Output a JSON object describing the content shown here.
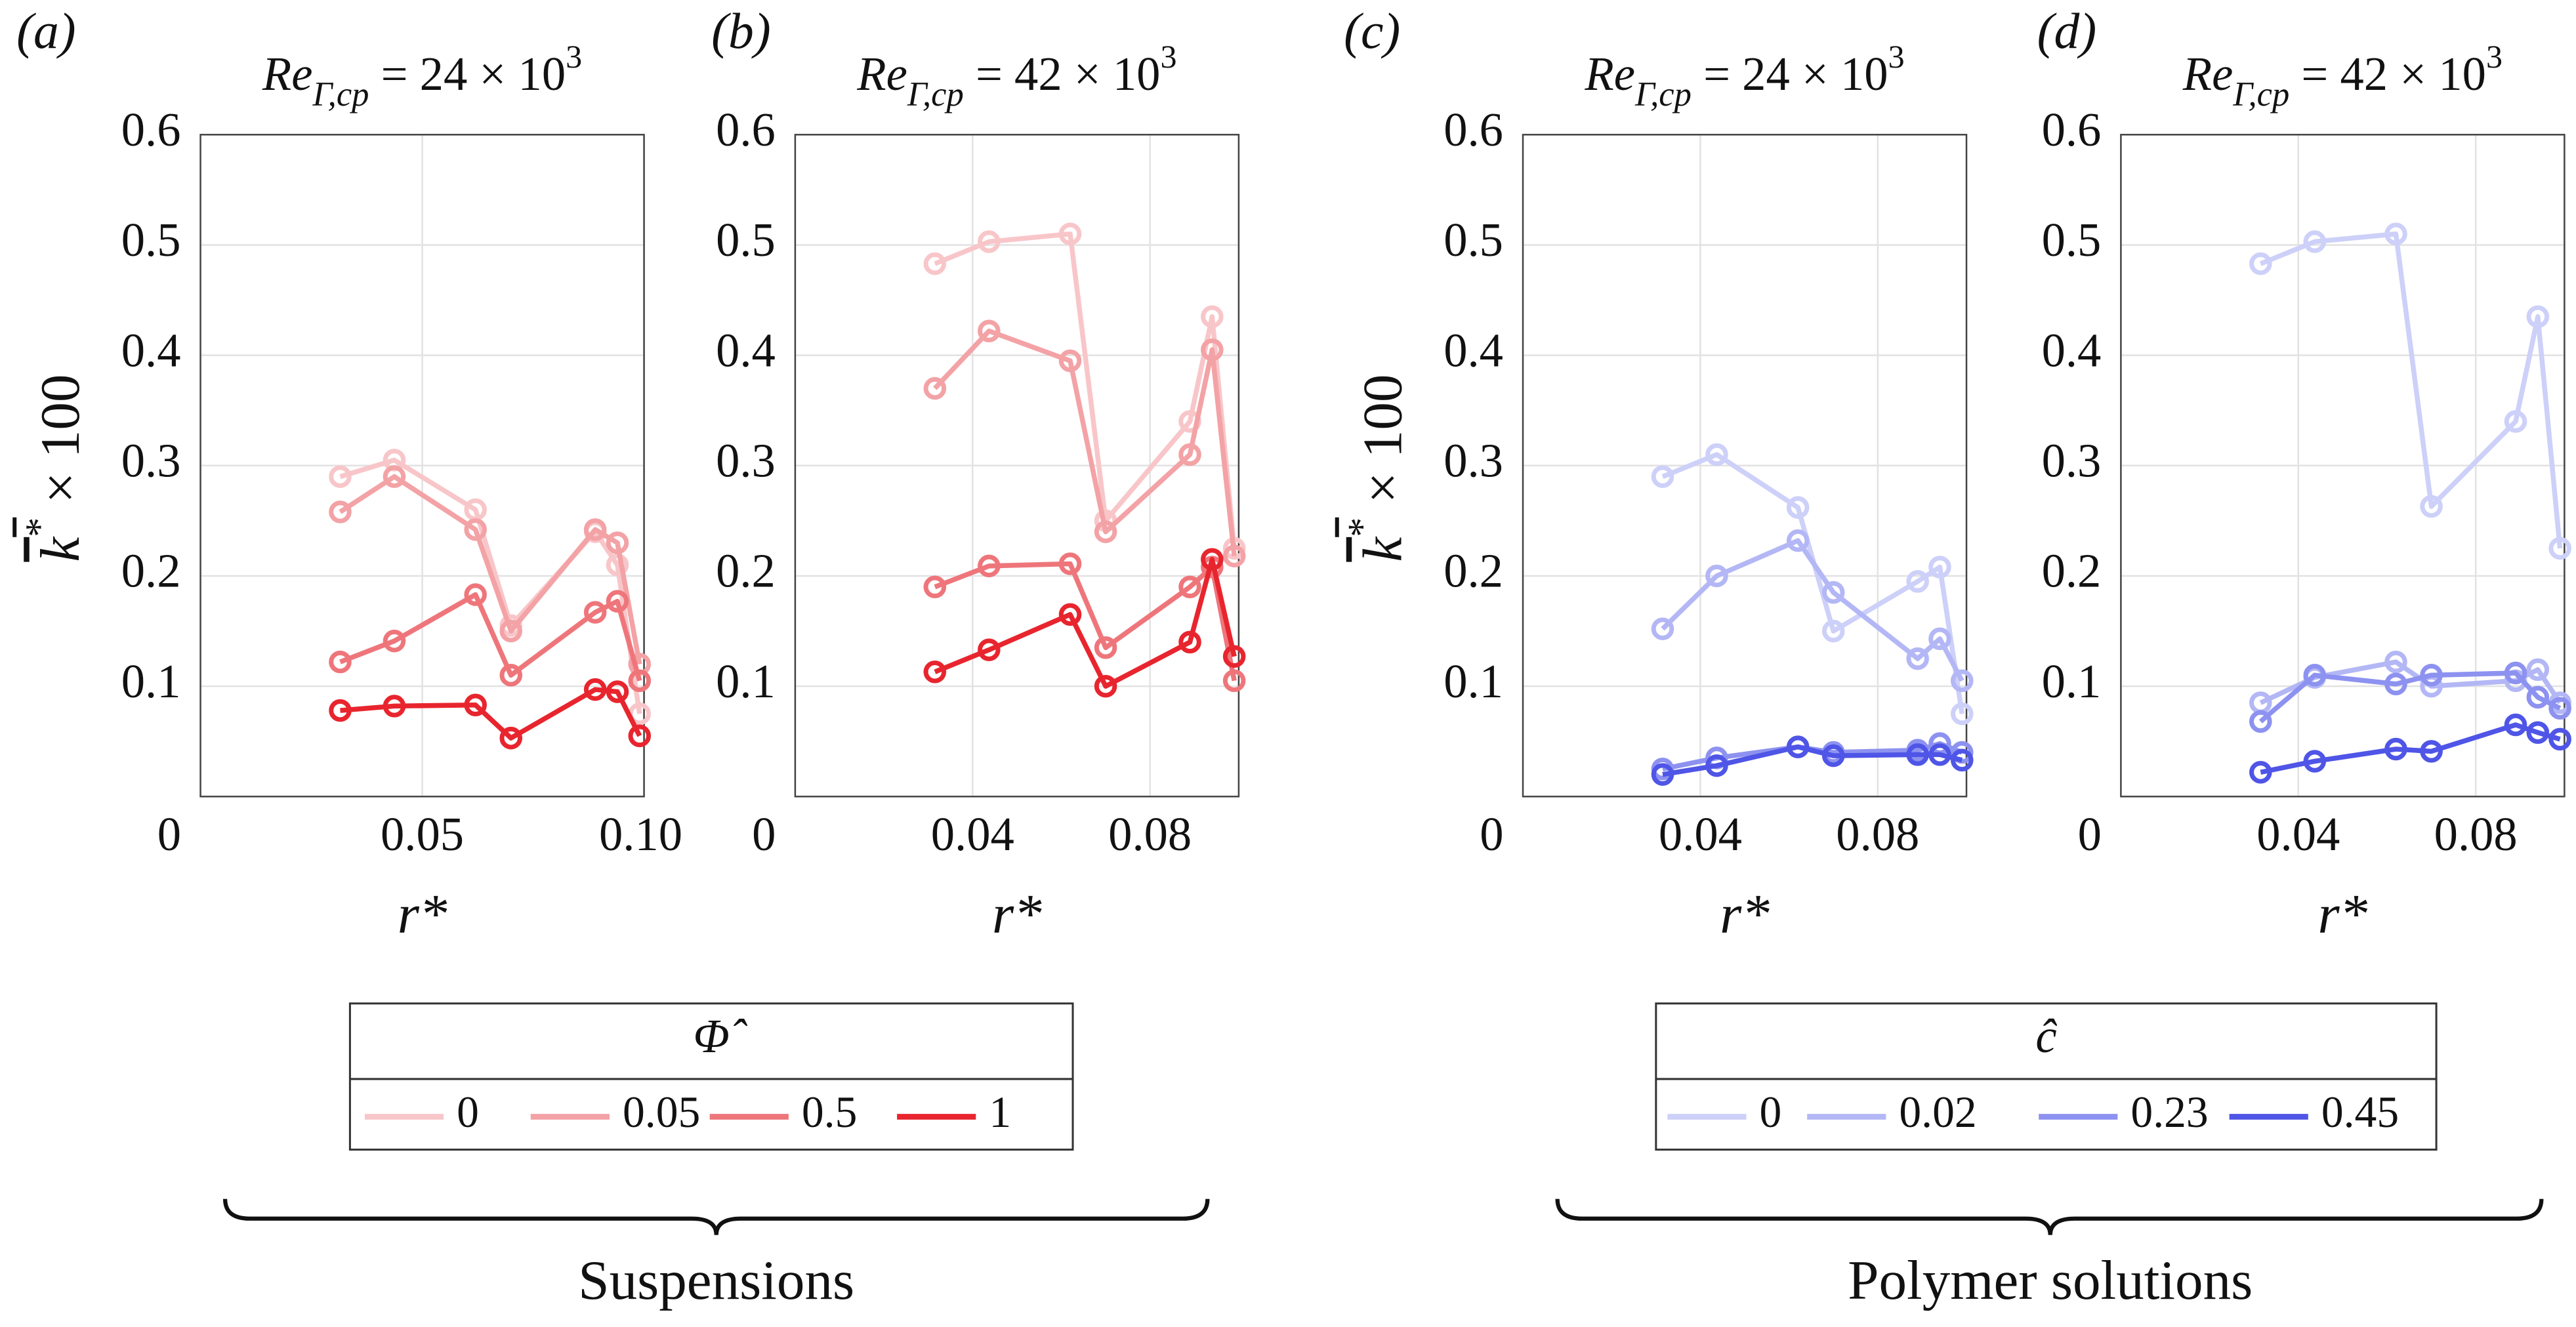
{
  "chart_data": [
    {
      "type": "line",
      "panel": "(a)",
      "title": [
        "Re",
        "Γ,cp",
        " = 24 × 10",
        "3"
      ],
      "ylabel": [
        "k",
        "*",
        " × 100"
      ],
      "xlabel": "r*",
      "legend_title": "Φ̂",
      "x": [
        0.0315,
        0.0437,
        0.062,
        0.07,
        0.089,
        0.094,
        0.099
      ],
      "xlim": [
        0,
        0.1
      ],
      "ylim": [
        0,
        0.6
      ],
      "xticks": [
        0.05,
        {
          "value": 0.1,
          "label": "0.10"
        }
      ],
      "yticks": [
        0,
        0.1,
        0.2,
        0.3,
        0.4,
        0.5,
        0.6
      ],
      "grid": true,
      "series": [
        {
          "name": "0",
          "color": "#f8c6c9",
          "values": [
            0.29,
            0.305,
            0.26,
            0.155,
            0.24,
            0.21,
            0.075
          ]
        },
        {
          "name": "0.05",
          "color": "#f3a2a6",
          "values": [
            0.258,
            0.29,
            0.242,
            0.15,
            0.242,
            0.23,
            0.12
          ]
        },
        {
          "name": "0.5",
          "color": "#ee767b",
          "values": [
            0.122,
            0.141,
            0.183,
            0.11,
            0.167,
            0.177,
            0.105
          ]
        },
        {
          "name": "1",
          "color": "#e8252e",
          "values": [
            0.078,
            0.082,
            0.083,
            0.053,
            0.097,
            0.095,
            0.055
          ]
        }
      ]
    },
    {
      "type": "line",
      "panel": "(b)",
      "title": [
        "Re",
        "Γ,cp",
        " = 42 × 10",
        "3"
      ],
      "xlabel": "r*",
      "x": [
        0.0315,
        0.0437,
        0.062,
        0.07,
        0.089,
        0.094,
        0.099
      ],
      "xlim": [
        0,
        0.1
      ],
      "ylim": [
        0,
        0.6
      ],
      "xticks": [
        0.04,
        0.08
      ],
      "yticks": [
        0,
        0.1,
        0.2,
        0.3,
        0.4,
        0.5,
        0.6
      ],
      "grid": true,
      "series": [
        {
          "color": "#f8c6c9",
          "values": [
            0.483,
            0.503,
            0.51,
            0.25,
            0.34,
            0.435,
            0.225
          ]
        },
        {
          "color": "#f3a2a6",
          "values": [
            0.37,
            0.422,
            0.395,
            0.24,
            0.31,
            0.405,
            0.218
          ]
        },
        {
          "color": "#ee767b",
          "values": [
            0.19,
            0.209,
            0.211,
            0.135,
            0.19,
            0.208,
            0.105
          ]
        },
        {
          "color": "#e8252e",
          "values": [
            0.113,
            0.133,
            0.165,
            0.1,
            0.14,
            0.215,
            0.127
          ]
        }
      ]
    },
    {
      "type": "line",
      "panel": "(c)",
      "title": [
        "Re",
        "Γ,cp",
        " = 24 × 10",
        "3"
      ],
      "ylabel": [
        "k",
        "*",
        " × 100"
      ],
      "xlabel": "r*",
      "legend_title": "ĉ",
      "x": [
        0.0315,
        0.0437,
        0.062,
        0.07,
        0.089,
        0.094,
        0.099
      ],
      "xlim": [
        0,
        0.1
      ],
      "ylim": [
        0,
        0.6
      ],
      "xticks": [
        0.04,
        0.08
      ],
      "yticks": [
        0,
        0.1,
        0.2,
        0.3,
        0.4,
        0.5,
        0.6
      ],
      "grid": true,
      "series": [
        {
          "name": "0",
          "color": "#cdd0f8",
          "values": [
            0.29,
            0.31,
            0.262,
            0.15,
            0.195,
            0.208,
            0.075
          ]
        },
        {
          "name": "0.02",
          "color": "#b3b7f5",
          "values": [
            0.152,
            0.2,
            0.232,
            0.185,
            0.125,
            0.143,
            0.105
          ]
        },
        {
          "name": "0.23",
          "color": "#8d92f0",
          "values": [
            0.025,
            0.035,
            0.045,
            0.04,
            0.042,
            0.048,
            0.04
          ]
        },
        {
          "name": "0.45",
          "color": "#4f55e6",
          "values": [
            0.02,
            0.028,
            0.045,
            0.037,
            0.038,
            0.038,
            0.033
          ]
        }
      ]
    },
    {
      "type": "line",
      "panel": "(d)",
      "title": [
        "Re",
        "Γ,cp",
        " = 42 × 10",
        "3"
      ],
      "xlabel": "r*",
      "x": [
        0.0315,
        0.0437,
        0.062,
        0.07,
        0.089,
        0.094,
        0.099
      ],
      "xlim": [
        0,
        0.1
      ],
      "ylim": [
        0,
        0.6
      ],
      "xticks": [
        0.04,
        0.08
      ],
      "yticks": [
        0,
        0.1,
        0.2,
        0.3,
        0.4,
        0.5,
        0.6
      ],
      "grid": true,
      "series": [
        {
          "color": "#cdd0f8",
          "values": [
            0.483,
            0.503,
            0.51,
            0.263,
            0.34,
            0.435,
            0.225
          ]
        },
        {
          "color": "#b3b7f5",
          "values": [
            0.085,
            0.108,
            0.122,
            0.1,
            0.105,
            0.115,
            0.085
          ]
        },
        {
          "color": "#8d92f0",
          "values": [
            0.068,
            0.11,
            0.102,
            0.11,
            0.112,
            0.09,
            0.08
          ]
        },
        {
          "color": "#4f55e6",
          "values": [
            0.022,
            0.032,
            0.043,
            0.041,
            0.065,
            0.058,
            0.052
          ]
        }
      ]
    }
  ],
  "groups": [
    "Suspensions",
    "Polymer solutions"
  ]
}
